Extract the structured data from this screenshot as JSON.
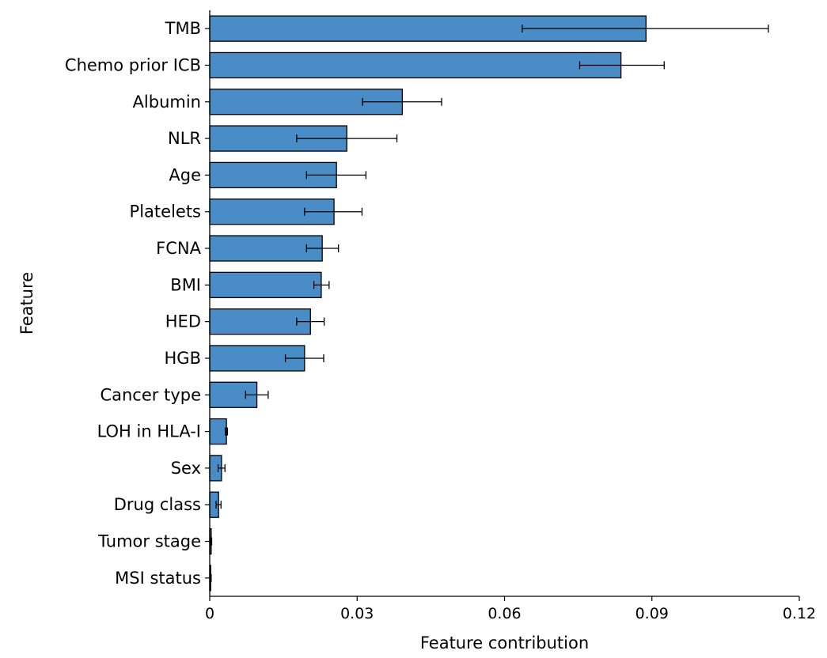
{
  "chart_data": {
    "type": "bar",
    "orientation": "horizontal",
    "categories": [
      "TMB",
      "Chemo prior ICB",
      "Albumin",
      "NLR",
      "Age",
      "Platelets",
      "FCNA",
      "BMI",
      "HED",
      "HGB",
      "Cancer type",
      "LOH in HLA-I",
      "Sex",
      "Drug class",
      "Tumor stage",
      "MSI status"
    ],
    "values": [
      0.0888,
      0.0837,
      0.0392,
      0.0279,
      0.0258,
      0.0253,
      0.0229,
      0.0227,
      0.0205,
      0.0193,
      0.0096,
      0.0034,
      0.0024,
      0.0018,
      0.0003,
      0.0002
    ],
    "error_low": [
      0.0636,
      0.0753,
      0.0311,
      0.0177,
      0.0197,
      0.0193,
      0.0197,
      0.0212,
      0.0177,
      0.0154,
      0.0073,
      0.0032,
      0.0017,
      0.0013,
      0.0002,
      0.0001
    ],
    "error_high": [
      0.1137,
      0.0925,
      0.0472,
      0.0381,
      0.0318,
      0.031,
      0.0262,
      0.0243,
      0.0233,
      0.0232,
      0.0119,
      0.0036,
      0.0031,
      0.0023,
      0.0004,
      0.0003
    ],
    "xlim": [
      0,
      0.12
    ],
    "xticks": [
      "0",
      "0.03",
      "0.06",
      "0.09",
      "0.12"
    ],
    "xlabel": "Feature contribution",
    "ylabel": "Feature",
    "grid": false,
    "bar_color": "#4a8cc6",
    "bar_edge_color": "#000000"
  }
}
